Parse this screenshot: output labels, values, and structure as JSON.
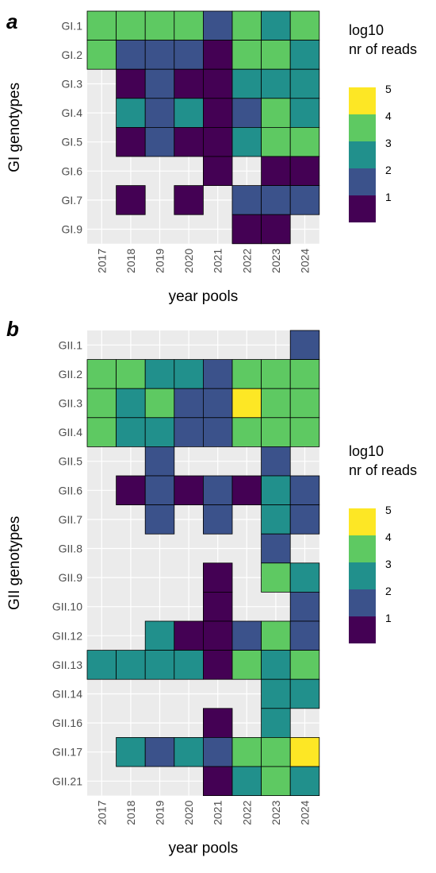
{
  "chart_data": [
    {
      "type": "heatmap",
      "panel_label": "a",
      "title": "",
      "xlabel": "year pools",
      "ylabel": "GI genotypes",
      "x_categories": [
        "2017",
        "2018",
        "2019",
        "2020",
        "2021",
        "2022",
        "2023",
        "2024"
      ],
      "y_categories": [
        "GI.1",
        "GI.2",
        "GI.3",
        "GI.4",
        "GI.5",
        "GI.6",
        "GI.7",
        "GI.9"
      ],
      "cells": [
        {
          "y": "GI.1",
          "x": "2017",
          "value": 3
        },
        {
          "y": "GI.1",
          "x": "2018",
          "value": 3
        },
        {
          "y": "GI.1",
          "x": "2019",
          "value": 3
        },
        {
          "y": "GI.1",
          "x": "2020",
          "value": 3
        },
        {
          "y": "GI.1",
          "x": "2021",
          "value": 1.5
        },
        {
          "y": "GI.1",
          "x": "2022",
          "value": 3
        },
        {
          "y": "GI.1",
          "x": "2023",
          "value": 2.5
        },
        {
          "y": "GI.1",
          "x": "2024",
          "value": 3
        },
        {
          "y": "GI.2",
          "x": "2017",
          "value": 3
        },
        {
          "y": "GI.2",
          "x": "2018",
          "value": 1.5
        },
        {
          "y": "GI.2",
          "x": "2019",
          "value": 1.5
        },
        {
          "y": "GI.2",
          "x": "2020",
          "value": 1.5
        },
        {
          "y": "GI.2",
          "x": "2021",
          "value": 0.5
        },
        {
          "y": "GI.2",
          "x": "2022",
          "value": 3
        },
        {
          "y": "GI.2",
          "x": "2023",
          "value": 3
        },
        {
          "y": "GI.2",
          "x": "2024",
          "value": 2.5
        },
        {
          "y": "GI.3",
          "x": "2018",
          "value": 0.5
        },
        {
          "y": "GI.3",
          "x": "2019",
          "value": 1.5
        },
        {
          "y": "GI.3",
          "x": "2020",
          "value": 0.5
        },
        {
          "y": "GI.3",
          "x": "2021",
          "value": 0.5
        },
        {
          "y": "GI.3",
          "x": "2022",
          "value": 2.5
        },
        {
          "y": "GI.3",
          "x": "2023",
          "value": 2.5
        },
        {
          "y": "GI.3",
          "x": "2024",
          "value": 2.5
        },
        {
          "y": "GI.4",
          "x": "2018",
          "value": 2.5
        },
        {
          "y": "GI.4",
          "x": "2019",
          "value": 1.5
        },
        {
          "y": "GI.4",
          "x": "2020",
          "value": 2.5
        },
        {
          "y": "GI.4",
          "x": "2021",
          "value": 0.5
        },
        {
          "y": "GI.4",
          "x": "2022",
          "value": 1.5
        },
        {
          "y": "GI.4",
          "x": "2023",
          "value": 3
        },
        {
          "y": "GI.4",
          "x": "2024",
          "value": 2.5
        },
        {
          "y": "GI.5",
          "x": "2018",
          "value": 0.5
        },
        {
          "y": "GI.5",
          "x": "2019",
          "value": 1.5
        },
        {
          "y": "GI.5",
          "x": "2020",
          "value": 0.5
        },
        {
          "y": "GI.5",
          "x": "2021",
          "value": 0.5
        },
        {
          "y": "GI.5",
          "x": "2022",
          "value": 2.5
        },
        {
          "y": "GI.5",
          "x": "2023",
          "value": 3
        },
        {
          "y": "GI.5",
          "x": "2024",
          "value": 3
        },
        {
          "y": "GI.6",
          "x": "2021",
          "value": 0.5
        },
        {
          "y": "GI.6",
          "x": "2023",
          "value": 0.5
        },
        {
          "y": "GI.6",
          "x": "2024",
          "value": 0.5
        },
        {
          "y": "GI.7",
          "x": "2018",
          "value": 0.5
        },
        {
          "y": "GI.7",
          "x": "2020",
          "value": 0.5
        },
        {
          "y": "GI.7",
          "x": "2022",
          "value": 1.5
        },
        {
          "y": "GI.7",
          "x": "2023",
          "value": 1.5
        },
        {
          "y": "GI.7",
          "x": "2024",
          "value": 1.5
        },
        {
          "y": "GI.9",
          "x": "2022",
          "value": 0.5
        },
        {
          "y": "GI.9",
          "x": "2023",
          "value": 0.5
        }
      ],
      "legend": {
        "title_lines": [
          "log10",
          "nr of reads"
        ],
        "breaks": [
          1,
          2,
          3,
          4,
          5
        ],
        "placement": "right"
      }
    },
    {
      "type": "heatmap",
      "panel_label": "b",
      "title": "",
      "xlabel": "year pools",
      "ylabel": "GII genotypes",
      "x_categories": [
        "2017",
        "2018",
        "2019",
        "2020",
        "2021",
        "2022",
        "2023",
        "2024"
      ],
      "y_categories": [
        "GII.1",
        "GII.2",
        "GII.3",
        "GII.4",
        "GII.5",
        "GII.6",
        "GII.7",
        "GII.8",
        "GII.9",
        "GII.10",
        "GII.12",
        "GII.13",
        "GII.14",
        "GII.16",
        "GII.17",
        "GII.21"
      ],
      "cells": [
        {
          "y": "GII.1",
          "x": "2024",
          "value": 1.5
        },
        {
          "y": "GII.2",
          "x": "2017",
          "value": 3
        },
        {
          "y": "GII.2",
          "x": "2018",
          "value": 3
        },
        {
          "y": "GII.2",
          "x": "2019",
          "value": 2.5
        },
        {
          "y": "GII.2",
          "x": "2020",
          "value": 2.5
        },
        {
          "y": "GII.2",
          "x": "2021",
          "value": 1.5
        },
        {
          "y": "GII.2",
          "x": "2022",
          "value": 3
        },
        {
          "y": "GII.2",
          "x": "2023",
          "value": 3
        },
        {
          "y": "GII.2",
          "x": "2024",
          "value": 3
        },
        {
          "y": "GII.3",
          "x": "2017",
          "value": 3
        },
        {
          "y": "GII.3",
          "x": "2018",
          "value": 2.5
        },
        {
          "y": "GII.3",
          "x": "2019",
          "value": 3
        },
        {
          "y": "GII.3",
          "x": "2020",
          "value": 1.5
        },
        {
          "y": "GII.3",
          "x": "2021",
          "value": 1.5
        },
        {
          "y": "GII.3",
          "x": "2022",
          "value": 4.5
        },
        {
          "y": "GII.3",
          "x": "2023",
          "value": 3
        },
        {
          "y": "GII.3",
          "x": "2024",
          "value": 3
        },
        {
          "y": "GII.4",
          "x": "2017",
          "value": 3
        },
        {
          "y": "GII.4",
          "x": "2018",
          "value": 2.5
        },
        {
          "y": "GII.4",
          "x": "2019",
          "value": 2.5
        },
        {
          "y": "GII.4",
          "x": "2020",
          "value": 1.5
        },
        {
          "y": "GII.4",
          "x": "2021",
          "value": 1.5
        },
        {
          "y": "GII.4",
          "x": "2022",
          "value": 3
        },
        {
          "y": "GII.4",
          "x": "2023",
          "value": 3
        },
        {
          "y": "GII.4",
          "x": "2024",
          "value": 3
        },
        {
          "y": "GII.5",
          "x": "2019",
          "value": 1.5
        },
        {
          "y": "GII.5",
          "x": "2023",
          "value": 1.5
        },
        {
          "y": "GII.6",
          "x": "2018",
          "value": 0.5
        },
        {
          "y": "GII.6",
          "x": "2019",
          "value": 1.5
        },
        {
          "y": "GII.6",
          "x": "2020",
          "value": 0.5
        },
        {
          "y": "GII.6",
          "x": "2021",
          "value": 1.5
        },
        {
          "y": "GII.6",
          "x": "2022",
          "value": 0.5
        },
        {
          "y": "GII.6",
          "x": "2023",
          "value": 2.5
        },
        {
          "y": "GII.6",
          "x": "2024",
          "value": 1.5
        },
        {
          "y": "GII.7",
          "x": "2019",
          "value": 1.5
        },
        {
          "y": "GII.7",
          "x": "2021",
          "value": 1.5
        },
        {
          "y": "GII.7",
          "x": "2023",
          "value": 2.5
        },
        {
          "y": "GII.7",
          "x": "2024",
          "value": 1.5
        },
        {
          "y": "GII.8",
          "x": "2023",
          "value": 1.5
        },
        {
          "y": "GII.9",
          "x": "2021",
          "value": 0.5
        },
        {
          "y": "GII.9",
          "x": "2023",
          "value": 3
        },
        {
          "y": "GII.9",
          "x": "2024",
          "value": 2.5
        },
        {
          "y": "GII.10",
          "x": "2021",
          "value": 0.5
        },
        {
          "y": "GII.10",
          "x": "2024",
          "value": 1.5
        },
        {
          "y": "GII.12",
          "x": "2019",
          "value": 2.5
        },
        {
          "y": "GII.12",
          "x": "2020",
          "value": 0.5
        },
        {
          "y": "GII.12",
          "x": "2021",
          "value": 0.5
        },
        {
          "y": "GII.12",
          "x": "2022",
          "value": 1.5
        },
        {
          "y": "GII.12",
          "x": "2023",
          "value": 3
        },
        {
          "y": "GII.12",
          "x": "2024",
          "value": 1.5
        },
        {
          "y": "GII.13",
          "x": "2017",
          "value": 2.5
        },
        {
          "y": "GII.13",
          "x": "2018",
          "value": 2.5
        },
        {
          "y": "GII.13",
          "x": "2019",
          "value": 2.5
        },
        {
          "y": "GII.13",
          "x": "2020",
          "value": 2.5
        },
        {
          "y": "GII.13",
          "x": "2021",
          "value": 0.5
        },
        {
          "y": "GII.13",
          "x": "2022",
          "value": 3
        },
        {
          "y": "GII.13",
          "x": "2023",
          "value": 2.5
        },
        {
          "y": "GII.13",
          "x": "2024",
          "value": 3
        },
        {
          "y": "GII.14",
          "x": "2023",
          "value": 2.5
        },
        {
          "y": "GII.14",
          "x": "2024",
          "value": 2.5
        },
        {
          "y": "GII.16",
          "x": "2021",
          "value": 0.5
        },
        {
          "y": "GII.16",
          "x": "2023",
          "value": 2.5
        },
        {
          "y": "GII.17",
          "x": "2018",
          "value": 2.5
        },
        {
          "y": "GII.17",
          "x": "2019",
          "value": 1.5
        },
        {
          "y": "GII.17",
          "x": "2020",
          "value": 2.5
        },
        {
          "y": "GII.17",
          "x": "2021",
          "value": 1.5
        },
        {
          "y": "GII.17",
          "x": "2022",
          "value": 3
        },
        {
          "y": "GII.17",
          "x": "2023",
          "value": 3
        },
        {
          "y": "GII.17",
          "x": "2024",
          "value": 4.5
        },
        {
          "y": "GII.21",
          "x": "2021",
          "value": 0.5
        },
        {
          "y": "GII.21",
          "x": "2022",
          "value": 2.5
        },
        {
          "y": "GII.21",
          "x": "2023",
          "value": 3
        },
        {
          "y": "GII.21",
          "x": "2024",
          "value": 2.5
        }
      ],
      "legend": {
        "title_lines": [
          "log10",
          "nr of reads"
        ],
        "breaks": [
          1,
          2,
          3,
          4,
          5
        ],
        "placement": "right"
      }
    }
  ],
  "colors": {
    "panel_background": "#ebebeb",
    "gridline": "#ffffff",
    "cell_border": "#000000",
    "scale": [
      "#440154",
      "#3b528b",
      "#21908c",
      "#5ec962",
      "#fde725"
    ]
  }
}
